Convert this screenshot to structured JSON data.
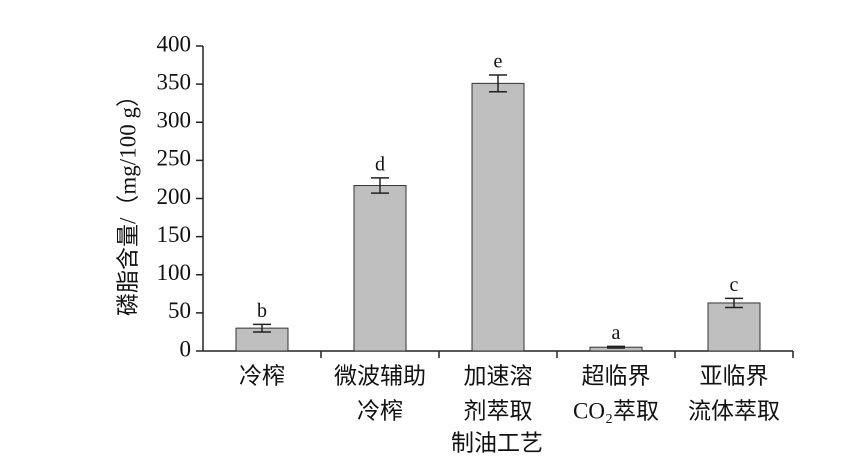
{
  "chart_data": {
    "type": "bar",
    "x_label": "制油工艺",
    "y_label": "磷脂含量/（mg/100 g）",
    "categories": [
      [
        "冷榨"
      ],
      [
        "微波辅助",
        "冷榨"
      ],
      [
        "加速溶",
        "剂萃取"
      ],
      [
        "超临界",
        "CO₂萃取"
      ],
      [
        "亚临界",
        "流体萃取"
      ]
    ],
    "values": [
      30,
      217,
      351,
      5,
      63
    ],
    "errors": [
      5,
      10,
      11,
      1,
      6
    ],
    "annotations": [
      "b",
      "d",
      "e",
      "a",
      "c"
    ],
    "color": "#bfbfbf",
    "ylim": [
      0,
      400
    ],
    "yticks": [
      0,
      50,
      100,
      150,
      200,
      250,
      300,
      350,
      400
    ],
    "grid": false
  }
}
